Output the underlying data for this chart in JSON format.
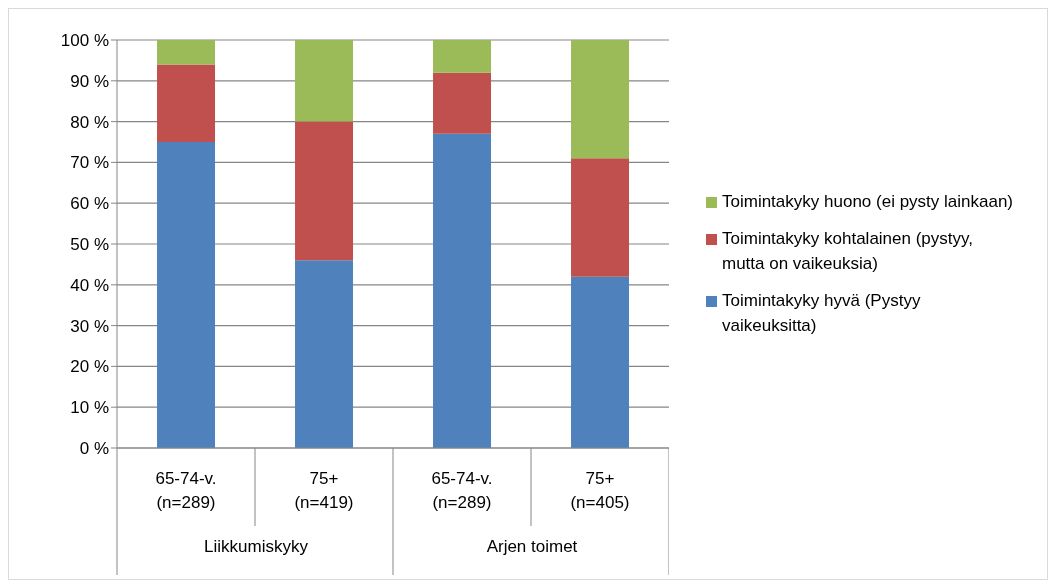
{
  "chart_data": {
    "type": "bar",
    "stacked": true,
    "categories": [
      "65-74-v. (n=289)",
      "75+ (n=419)",
      "65-74-v. (n=289)",
      "75+ (n=405)"
    ],
    "series": [
      {
        "name": "Toimintakyky hyvä (Pystyy vaikeuksitta)",
        "color": "#4f81bd",
        "values": [
          75,
          46,
          77,
          42
        ]
      },
      {
        "name": "Toimintakyky kohtalainen (pystyy, mutta on vaikeuksia)",
        "color": "#c0504d",
        "values": [
          19,
          34,
          15,
          29
        ]
      },
      {
        "name": "Toimintakyky huono (ei pysty lainkaan)",
        "color": "#9bbb59",
        "values": [
          6,
          20,
          8,
          29
        ]
      }
    ],
    "ylim": [
      0,
      100
    ],
    "yticks": [
      {
        "value": 0,
        "label": "0 %"
      },
      {
        "value": 10,
        "label": "10 %"
      },
      {
        "value": 20,
        "label": "20 %"
      },
      {
        "value": 30,
        "label": "30 %"
      },
      {
        "value": 40,
        "label": "40 %"
      },
      {
        "value": 50,
        "label": "50 %"
      },
      {
        "value": 60,
        "label": "60 %"
      },
      {
        "value": 70,
        "label": "70 %"
      },
      {
        "value": 80,
        "label": "80 %"
      },
      {
        "value": 90,
        "label": "90 %"
      },
      {
        "value": 100,
        "label": "100 %"
      }
    ],
    "grid": "y",
    "legend": "right",
    "annotations": [
      "Liikkumiskyky",
      "Arjen toimet"
    ]
  }
}
